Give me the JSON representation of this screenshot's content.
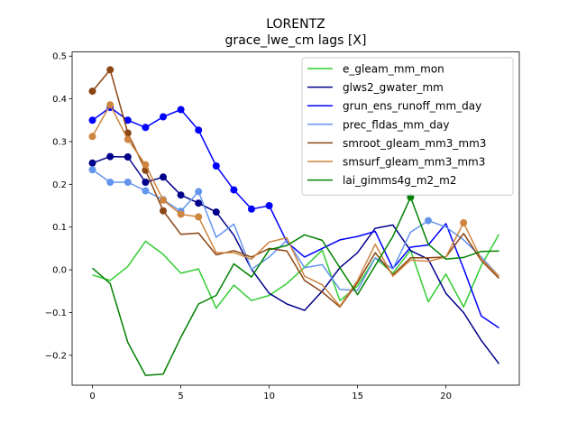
{
  "chart_data": {
    "type": "line",
    "title": "LORENTZ",
    "subtitle": "grace_lwe_cm lags [X]",
    "xlabel": "",
    "ylabel": "",
    "xlim": [
      -1.15,
      24.15
    ],
    "ylim": [
      -0.27,
      0.51
    ],
    "xticks": [
      0,
      5,
      10,
      15,
      20
    ],
    "yticks": [
      -0.2,
      -0.1,
      0.0,
      0.1,
      0.2,
      0.3,
      0.4,
      0.5
    ],
    "xtick_labels": [
      "0",
      "5",
      "10",
      "15",
      "20"
    ],
    "ytick_labels": [
      "−0.2",
      "−0.1",
      "0.0",
      "0.1",
      "0.2",
      "0.3",
      "0.4",
      "0.5"
    ],
    "grid": false,
    "legend_position": "top-right",
    "x": [
      0,
      1,
      2,
      3,
      4,
      5,
      6,
      7,
      8,
      9,
      10,
      11,
      12,
      13,
      14,
      15,
      16,
      17,
      18,
      19,
      20,
      21,
      22,
      23
    ],
    "series": [
      {
        "name": "e_gleam_mm_mon",
        "color": "#32cd32",
        "values": [
          -0.012,
          -0.025,
          0.008,
          0.067,
          0.036,
          -0.008,
          0.002,
          -0.09,
          -0.036,
          -0.072,
          -0.06,
          -0.032,
          0.006,
          0.046,
          -0.072,
          -0.038,
          0.028,
          -0.008,
          0.046,
          -0.075,
          -0.01,
          -0.087,
          0.01,
          0.083
        ],
        "markers": []
      },
      {
        "name": "glws2_gwater_mm",
        "color": "#00008b",
        "values": [
          0.25,
          0.265,
          0.264,
          0.205,
          0.217,
          0.175,
          0.156,
          0.135,
          0.081,
          0.001,
          -0.055,
          -0.08,
          -0.095,
          -0.05,
          0.005,
          0.04,
          0.097,
          0.105,
          0.045,
          0.025,
          -0.055,
          -0.1,
          -0.165,
          -0.22
        ],
        "markers": [
          0,
          1,
          2,
          3,
          4,
          5,
          6,
          7
        ]
      },
      {
        "name": "grun_ens_runoff_mm_day",
        "color": "#0000ff",
        "values": [
          0.35,
          0.38,
          0.35,
          0.333,
          0.358,
          0.375,
          0.327,
          0.243,
          0.187,
          0.142,
          0.15,
          0.065,
          0.03,
          0.05,
          0.07,
          0.078,
          0.09,
          0.003,
          0.053,
          0.058,
          0.108,
          0.003,
          -0.108,
          -0.136
        ],
        "markers": [
          0,
          1,
          2,
          3,
          4,
          5,
          6,
          7,
          8,
          9,
          10
        ]
      },
      {
        "name": "prec_fldas_mm_day",
        "color": "#6495ed",
        "values": [
          0.234,
          0.205,
          0.205,
          0.185,
          0.164,
          0.137,
          0.183,
          0.076,
          0.107,
          0.001,
          0.03,
          0.069,
          0.005,
          0.012,
          -0.046,
          -0.048,
          0.028,
          0.002,
          0.088,
          0.115,
          0.1,
          0.07,
          0.03,
          -0.015
        ],
        "markers": [
          0,
          1,
          2,
          3,
          4,
          5,
          6,
          19
        ]
      },
      {
        "name": "smroot_gleam_mm3_mm3",
        "color": "#8b4513",
        "values": [
          0.418,
          0.468,
          0.32,
          0.233,
          0.138,
          0.083,
          0.086,
          0.035,
          0.045,
          0.03,
          0.05,
          0.044,
          -0.025,
          -0.052,
          -0.087,
          -0.03,
          0.04,
          -0.012,
          0.028,
          0.028,
          0.03,
          0.085,
          0.022,
          -0.02
        ],
        "markers": [
          0,
          1,
          2,
          3,
          4
        ]
      },
      {
        "name": "smsurf_gleam_mm3_mm3",
        "color": "#cd853f",
        "values": [
          0.312,
          0.386,
          0.305,
          0.246,
          0.163,
          0.13,
          0.124,
          0.04,
          0.04,
          0.025,
          0.065,
          0.075,
          -0.015,
          -0.035,
          -0.085,
          -0.025,
          0.06,
          -0.015,
          0.023,
          0.02,
          0.03,
          0.11,
          0.025,
          -0.015
        ],
        "markers": [
          0,
          1,
          2,
          3,
          4,
          5,
          6,
          21
        ]
      },
      {
        "name": "lai_gimms4g_m2_m2",
        "color": "#008000",
        "values": [
          0.004,
          -0.032,
          -0.17,
          -0.247,
          -0.244,
          -0.158,
          -0.08,
          -0.06,
          0.014,
          -0.017,
          0.047,
          0.057,
          0.082,
          0.069,
          0.005,
          -0.058,
          0.01,
          0.078,
          0.17,
          0.06,
          0.025,
          0.029,
          0.043,
          0.044
        ],
        "markers": [
          18
        ]
      }
    ]
  }
}
